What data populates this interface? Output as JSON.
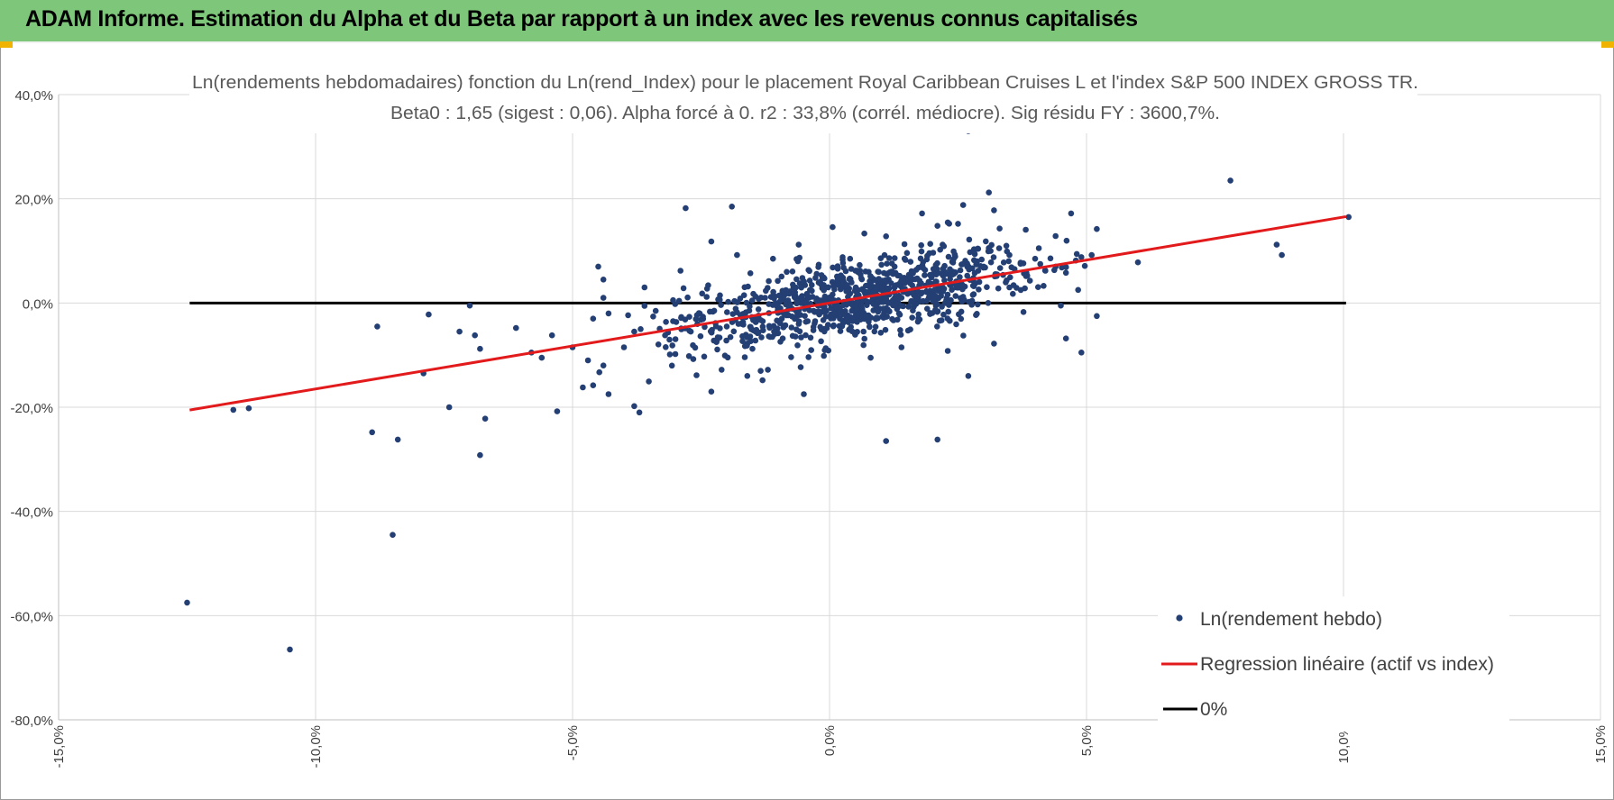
{
  "header": {
    "title": "ADAM Informe. Estimation du Alpha et du Beta par rapport à un index avec les revenus connus capitalisés"
  },
  "colors": {
    "header_bg": "#7dc67a",
    "points": "#243f73",
    "regression": "#e31a1c",
    "zero_line": "#000000",
    "grid": "#d9d9d9",
    "accent_corner": "#f0b400"
  },
  "chart_data": {
    "type": "scatter",
    "title_line1": "Ln(rendements hebdomadaires) fonction du Ln(rend_Index) pour le placement Royal Caribbean Cruises L et l'index S&P 500 INDEX GROSS TR.",
    "title_line2": "Beta0 : 1,65  (sigest : 0,06). Alpha forcé à 0. r2 : 33,8% (corrél. médiocre). Sig résidu FY : 3600,7%.",
    "xlim": [
      -0.15,
      0.15
    ],
    "ylim": [
      -0.8,
      0.4
    ],
    "x_ticks": [
      -0.15,
      -0.1,
      -0.05,
      0.0,
      0.05,
      0.1,
      0.15
    ],
    "x_tick_labels": [
      "-15,0%",
      "-10,0%",
      "-5,0%",
      "0,0%",
      "5,0%",
      "10,0%",
      "15,0%"
    ],
    "y_ticks": [
      0.4,
      0.2,
      0.0,
      -0.2,
      -0.4,
      -0.6,
      -0.8
    ],
    "y_tick_labels": [
      "40,0%",
      "20,0%",
      "0,0%",
      "-20,0%",
      "-40,0%",
      "-60,0%",
      "-80,0%"
    ],
    "grid": true,
    "legend_position": "bottom-right",
    "series": [
      {
        "name": "Ln(rendement hebdo)",
        "kind": "scatter",
        "points": [
          [
            -0.125,
            -0.575
          ],
          [
            -0.105,
            -0.665
          ],
          [
            -0.085,
            -0.445
          ],
          [
            -0.089,
            -0.248
          ],
          [
            -0.084,
            -0.262
          ],
          [
            -0.068,
            -0.292
          ],
          [
            -0.067,
            -0.222
          ],
          [
            -0.079,
            -0.135
          ],
          [
            -0.074,
            -0.2
          ],
          [
            -0.113,
            -0.202
          ],
          [
            -0.116,
            -0.205
          ],
          [
            -0.088,
            -0.045
          ],
          [
            -0.078,
            -0.022
          ],
          [
            -0.072,
            -0.055
          ],
          [
            -0.069,
            -0.062
          ],
          [
            -0.068,
            -0.088
          ],
          [
            -0.07,
            -0.005
          ],
          [
            -0.061,
            -0.048
          ],
          [
            -0.058,
            -0.095
          ],
          [
            -0.056,
            -0.105
          ],
          [
            -0.054,
            -0.062
          ],
          [
            -0.05,
            -0.085
          ],
          [
            -0.047,
            -0.11
          ],
          [
            -0.046,
            -0.03
          ],
          [
            -0.044,
            -0.12
          ],
          [
            -0.048,
            -0.162
          ],
          [
            -0.046,
            -0.158
          ],
          [
            -0.043,
            -0.175
          ],
          [
            -0.04,
            -0.085
          ],
          [
            -0.038,
            -0.055
          ],
          [
            -0.053,
            -0.208
          ],
          [
            -0.043,
            -0.02
          ],
          [
            -0.044,
            0.01
          ],
          [
            -0.037,
            -0.21
          ],
          [
            -0.038,
            -0.198
          ],
          [
            -0.036,
            0.03
          ],
          [
            -0.044,
            0.045
          ],
          [
            -0.045,
            0.07
          ],
          [
            -0.028,
            0.182
          ],
          [
            -0.019,
            0.185
          ],
          [
            -0.023,
            0.118
          ],
          [
            -0.029,
            0.062
          ],
          [
            -0.023,
            -0.17
          ],
          [
            -0.021,
            -0.128
          ],
          [
            -0.016,
            -0.14
          ],
          [
            -0.012,
            -0.128
          ],
          [
            -0.005,
            -0.175
          ],
          [
            -0.018,
            0.092
          ],
          [
            -0.011,
            0.085
          ],
          [
            -0.006,
            0.112
          ],
          [
            0.004,
            0.085
          ],
          [
            0.011,
            0.128
          ],
          [
            0.018,
            0.172
          ],
          [
            0.021,
            0.148
          ],
          [
            0.025,
            0.152
          ],
          [
            0.027,
            0.33
          ],
          [
            0.026,
            0.188
          ],
          [
            0.031,
            0.212
          ],
          [
            0.032,
            0.178
          ],
          [
            0.022,
            0.112
          ],
          [
            0.011,
            -0.265
          ],
          [
            0.021,
            -0.262
          ],
          [
            0.027,
            -0.14
          ],
          [
            0.023,
            -0.092
          ],
          [
            0.032,
            -0.078
          ],
          [
            0.008,
            -0.105
          ],
          [
            0.014,
            -0.085
          ],
          [
            0.046,
            -0.068
          ],
          [
            0.049,
            -0.095
          ],
          [
            0.045,
            -0.005
          ],
          [
            0.052,
            -0.025
          ],
          [
            0.047,
            0.172
          ],
          [
            0.049,
            0.088
          ],
          [
            0.052,
            0.142
          ],
          [
            0.051,
            0.092
          ],
          [
            0.06,
            0.078
          ],
          [
            0.078,
            0.235
          ],
          [
            0.087,
            0.112
          ],
          [
            0.088,
            0.092
          ],
          [
            0.101,
            0.165
          ],
          [
            0.044,
            0.07
          ],
          [
            0.042,
            0.062
          ],
          [
            0.036,
            0.065
          ],
          [
            0.04,
            0.085
          ],
          [
            0.038,
            0.028
          ],
          [
            0.035,
            0.03
          ],
          [
            0.046,
            0.058
          ],
          [
            0.041,
            0.075
          ],
          [
            0.035,
            0.092
          ],
          [
            0.033,
            0.105
          ],
          [
            -0.032,
            -0.062
          ],
          [
            -0.03,
            -0.098
          ],
          [
            -0.027,
            -0.055
          ],
          [
            -0.025,
            -0.032
          ],
          [
            -0.022,
            -0.075
          ],
          [
            -0.02,
            -0.045
          ],
          [
            -0.018,
            -0.018
          ],
          [
            -0.015,
            -0.088
          ],
          [
            -0.013,
            -0.035
          ],
          [
            -0.01,
            -0.058
          ],
          [
            -0.008,
            -0.012
          ],
          [
            -0.006,
            -0.04
          ],
          [
            -0.004,
            0.01
          ],
          [
            -0.002,
            -0.022
          ],
          [
            0.0,
            0.005
          ],
          [
            0.002,
            -0.03
          ],
          [
            0.004,
            0.018
          ],
          [
            0.006,
            -0.008
          ],
          [
            0.008,
            0.025
          ],
          [
            0.01,
            0.002
          ],
          [
            0.012,
            0.038
          ],
          [
            0.014,
            0.01
          ],
          [
            0.016,
            0.045
          ],
          [
            0.018,
            0.02
          ],
          [
            0.02,
            0.055
          ],
          [
            0.022,
            0.03
          ],
          [
            0.024,
            0.06
          ],
          [
            0.026,
            0.012
          ],
          [
            0.028,
            0.048
          ],
          [
            0.03,
            0.07
          ]
        ]
      },
      {
        "name": "Regression linéaire (actif vs index)",
        "kind": "line",
        "points": [
          [
            -0.1245,
            -0.2054
          ],
          [
            0.1005,
            0.1658
          ]
        ]
      },
      {
        "name": "0%",
        "kind": "line",
        "points": [
          [
            -0.1245,
            0.0
          ],
          [
            0.1005,
            0.0
          ]
        ]
      }
    ]
  }
}
